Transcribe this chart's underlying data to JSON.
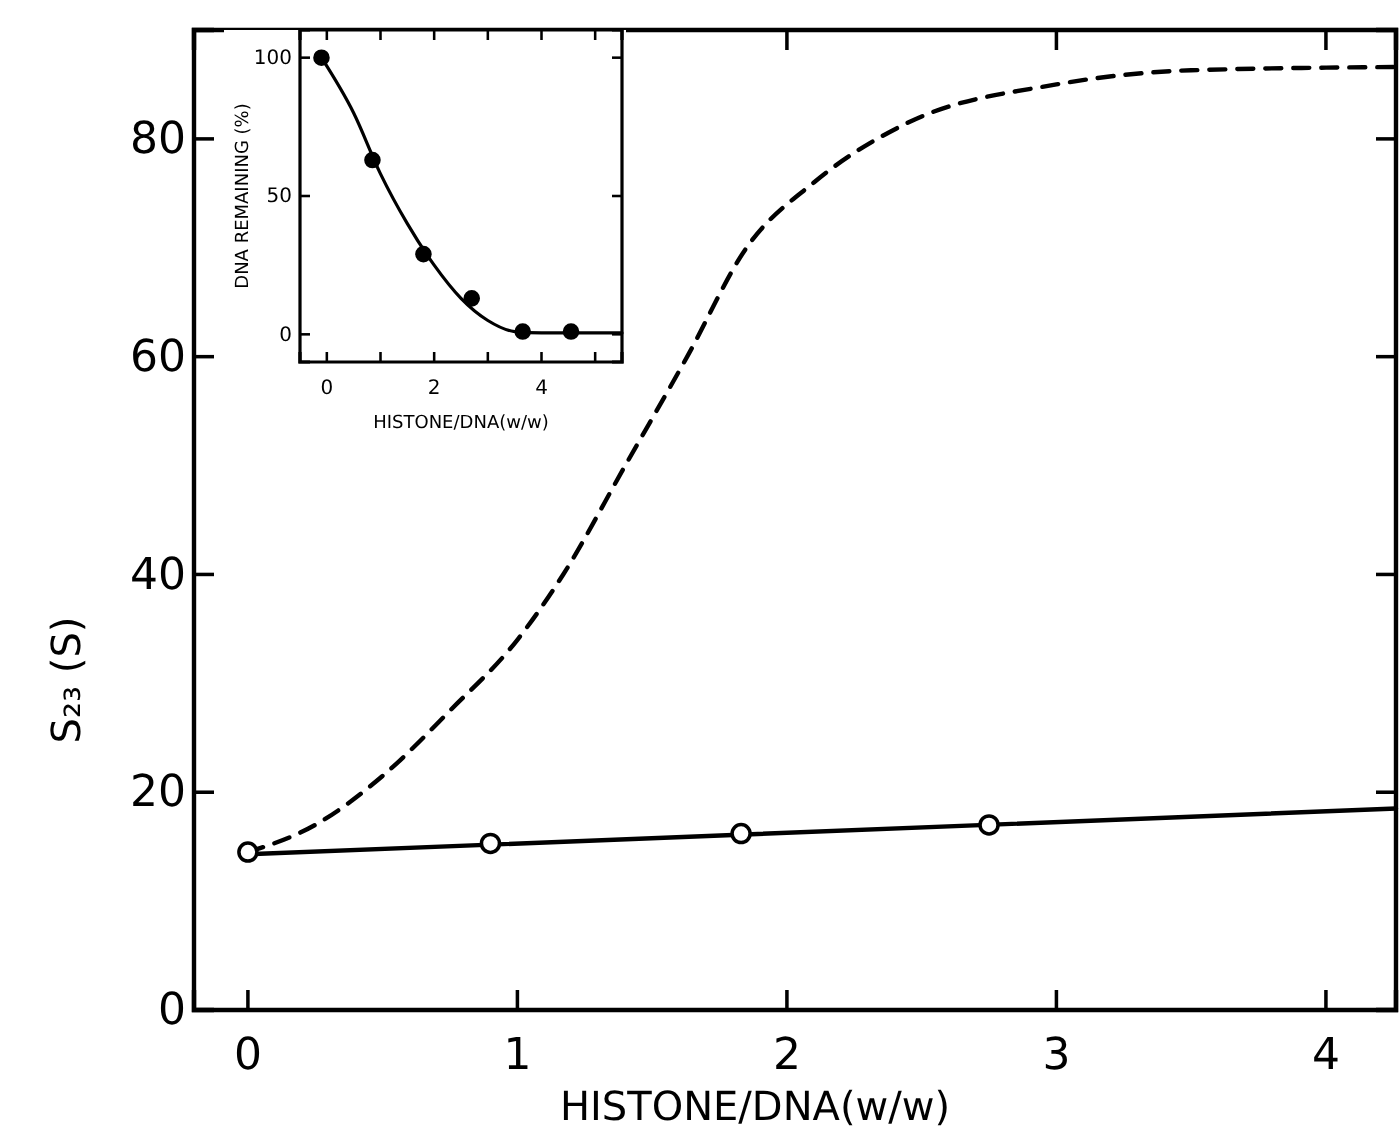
{
  "chart_data": [
    {
      "type": "line",
      "xlabel": "HISTONE/DNA(w/w)",
      "ylabel": "S₂₃ (S)",
      "xlim": [
        -0.2,
        4.26
      ],
      "ylim": [
        0,
        90
      ],
      "xticks": [
        0,
        1,
        2,
        3,
        4
      ],
      "yticks": [
        0,
        20,
        40,
        60,
        80
      ],
      "grid": false,
      "series": [
        {
          "type": "line",
          "line_style": "dashed",
          "marker": "none",
          "color": "#000000",
          "x": [
            0,
            0.25,
            0.5,
            0.75,
            1.0,
            1.17,
            1.4,
            1.63,
            1.85,
            2.1,
            2.45,
            3.0,
            3.5,
            4.26
          ],
          "values": [
            14.5,
            17,
            21.5,
            27.5,
            34,
            40,
            50,
            60,
            70,
            76,
            81.5,
            85,
            86.3,
            86.6
          ]
        },
        {
          "type": "line",
          "line_style": "solid",
          "marker": "none",
          "color": "#000000",
          "x": [
            0,
            4.26
          ],
          "values": [
            14.3,
            18.5
          ]
        },
        {
          "type": "scatter",
          "marker": "circle",
          "color": "#ffffff",
          "x": [
            0,
            0.9,
            1.83,
            2.75
          ],
          "values": [
            14.5,
            15.3,
            16.2,
            17
          ]
        }
      ]
    },
    {
      "type": "line",
      "xlabel": "HISTONE/DNA(w/w)",
      "ylabel": "DNA REMAINING (%)",
      "xlim": [
        -0.5,
        5.5
      ],
      "ylim": [
        -10,
        110
      ],
      "xticks": [
        0,
        {
          "value": 1,
          "label": null
        },
        2,
        {
          "value": 3,
          "label": null
        },
        4,
        {
          "value": 5,
          "label": null
        }
      ],
      "yticks": [
        0,
        50,
        100
      ],
      "grid": false,
      "series": [
        {
          "type": "line",
          "line_style": "solid",
          "marker": "none",
          "color": "#000000",
          "x": [
            -0.1,
            0.5,
            1.0,
            1.5,
            2.0,
            2.5,
            3.0,
            3.5,
            4.0,
            5.5
          ],
          "values": [
            100,
            80,
            58,
            40,
            25,
            13,
            5,
            1,
            0.5,
            0.5
          ]
        },
        {
          "type": "scatter",
          "marker": "circle",
          "color": "#000000",
          "x": [
            -0.1,
            0.85,
            1.8,
            2.7,
            3.65,
            4.55
          ],
          "values": [
            100,
            63,
            29,
            13,
            1,
            1
          ]
        }
      ]
    }
  ]
}
